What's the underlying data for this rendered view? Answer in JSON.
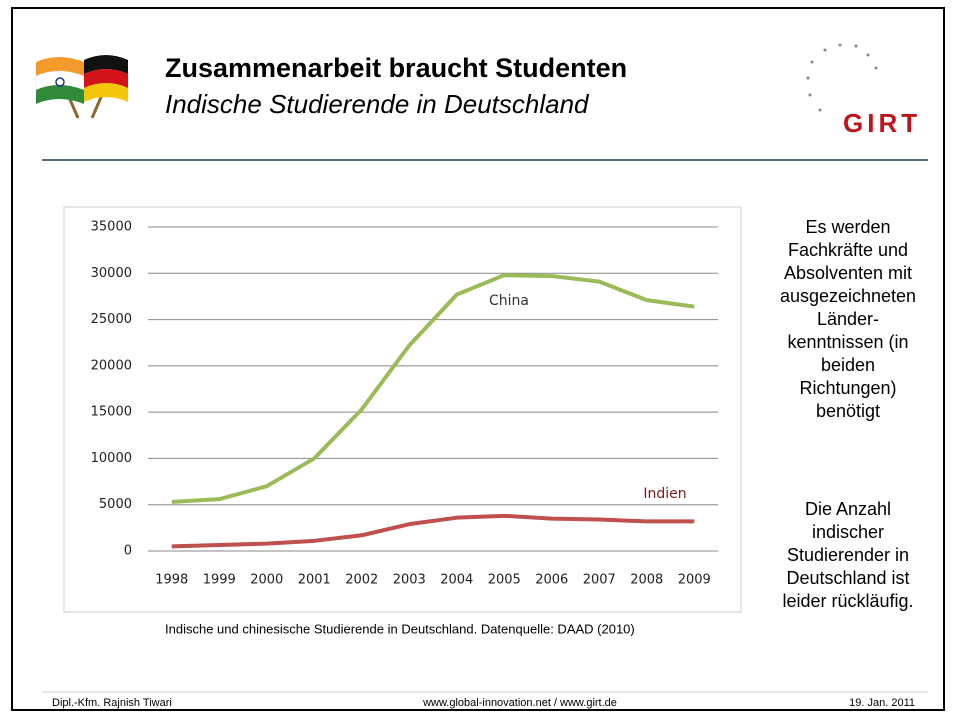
{
  "header": {
    "title": "Zusammenarbeit braucht Studenten",
    "subtitle": "Indische Studierende in Deutschland",
    "logo": "GIRT"
  },
  "chart_data": {
    "type": "line",
    "categories": [
      "1998",
      "1999",
      "2000",
      "2001",
      "2002",
      "2003",
      "2004",
      "2005",
      "2006",
      "2007",
      "2008",
      "2009"
    ],
    "series": [
      {
        "name": "China",
        "color": "#9bbb59",
        "values": [
          5300,
          5600,
          7000,
          10000,
          15300,
          22200,
          27700,
          29800,
          29700,
          29100,
          27100,
          26400
        ]
      },
      {
        "name": "Indien",
        "color": "#c0504d",
        "values": [
          500,
          650,
          800,
          1100,
          1700,
          2900,
          3600,
          3800,
          3500,
          3400,
          3200,
          3200
        ]
      }
    ],
    "ylim": [
      0,
      35000
    ],
    "yticks": [
      0,
      5000,
      10000,
      15000,
      20000,
      25000,
      30000,
      35000
    ],
    "grid": true
  },
  "caption": "Indische und chinesische Studierende in Deutschland. Datenquelle: DAAD (2010)",
  "side_text": {
    "block1": [
      "Es werden",
      "Fachkräfte und",
      "Absolventen mit",
      "ausgezeichneten",
      "Länder-",
      "kenntnissen (in",
      "beiden",
      "Richtungen)",
      "benötigt"
    ],
    "block2": [
      "Die Anzahl",
      "indischer",
      "Studierender in",
      "Deutschland ist",
      "leider rückläufig."
    ]
  },
  "footer": {
    "author": "Dipl.-Kfm. Rajnish Tiwari",
    "website": "www.global-innovation.net / www.girt.de",
    "date": "19. Jan. 2011"
  }
}
